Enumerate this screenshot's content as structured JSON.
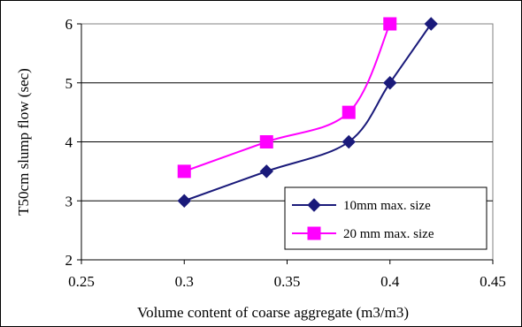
{
  "chart_data": {
    "type": "line",
    "title": "",
    "xlabel": "Volume content of coarse aggregate (m3/m3)",
    "ylabel": "T50cm slump flow (sec)",
    "xlim": [
      0.25,
      0.45
    ],
    "ylim": [
      2,
      6
    ],
    "xticks": [
      "0.25",
      "0.3",
      "0.35",
      "0.4",
      "0.45"
    ],
    "yticks": [
      "2",
      "3",
      "4",
      "5",
      "6"
    ],
    "grid": "horizontal",
    "legend_position": "bottom-right",
    "series": [
      {
        "name": "10mm max. size",
        "color": "#1a1a7a",
        "marker": "diamond",
        "x": [
          0.3,
          0.34,
          0.38,
          0.4,
          0.42
        ],
        "y": [
          3.0,
          3.5,
          4.0,
          5.0,
          6.0
        ]
      },
      {
        "name": "20 mm max. size",
        "color": "#ff00ff",
        "marker": "square",
        "x": [
          0.3,
          0.34,
          0.38,
          0.4
        ],
        "y": [
          3.5,
          4.0,
          4.5,
          6.0
        ]
      }
    ]
  }
}
